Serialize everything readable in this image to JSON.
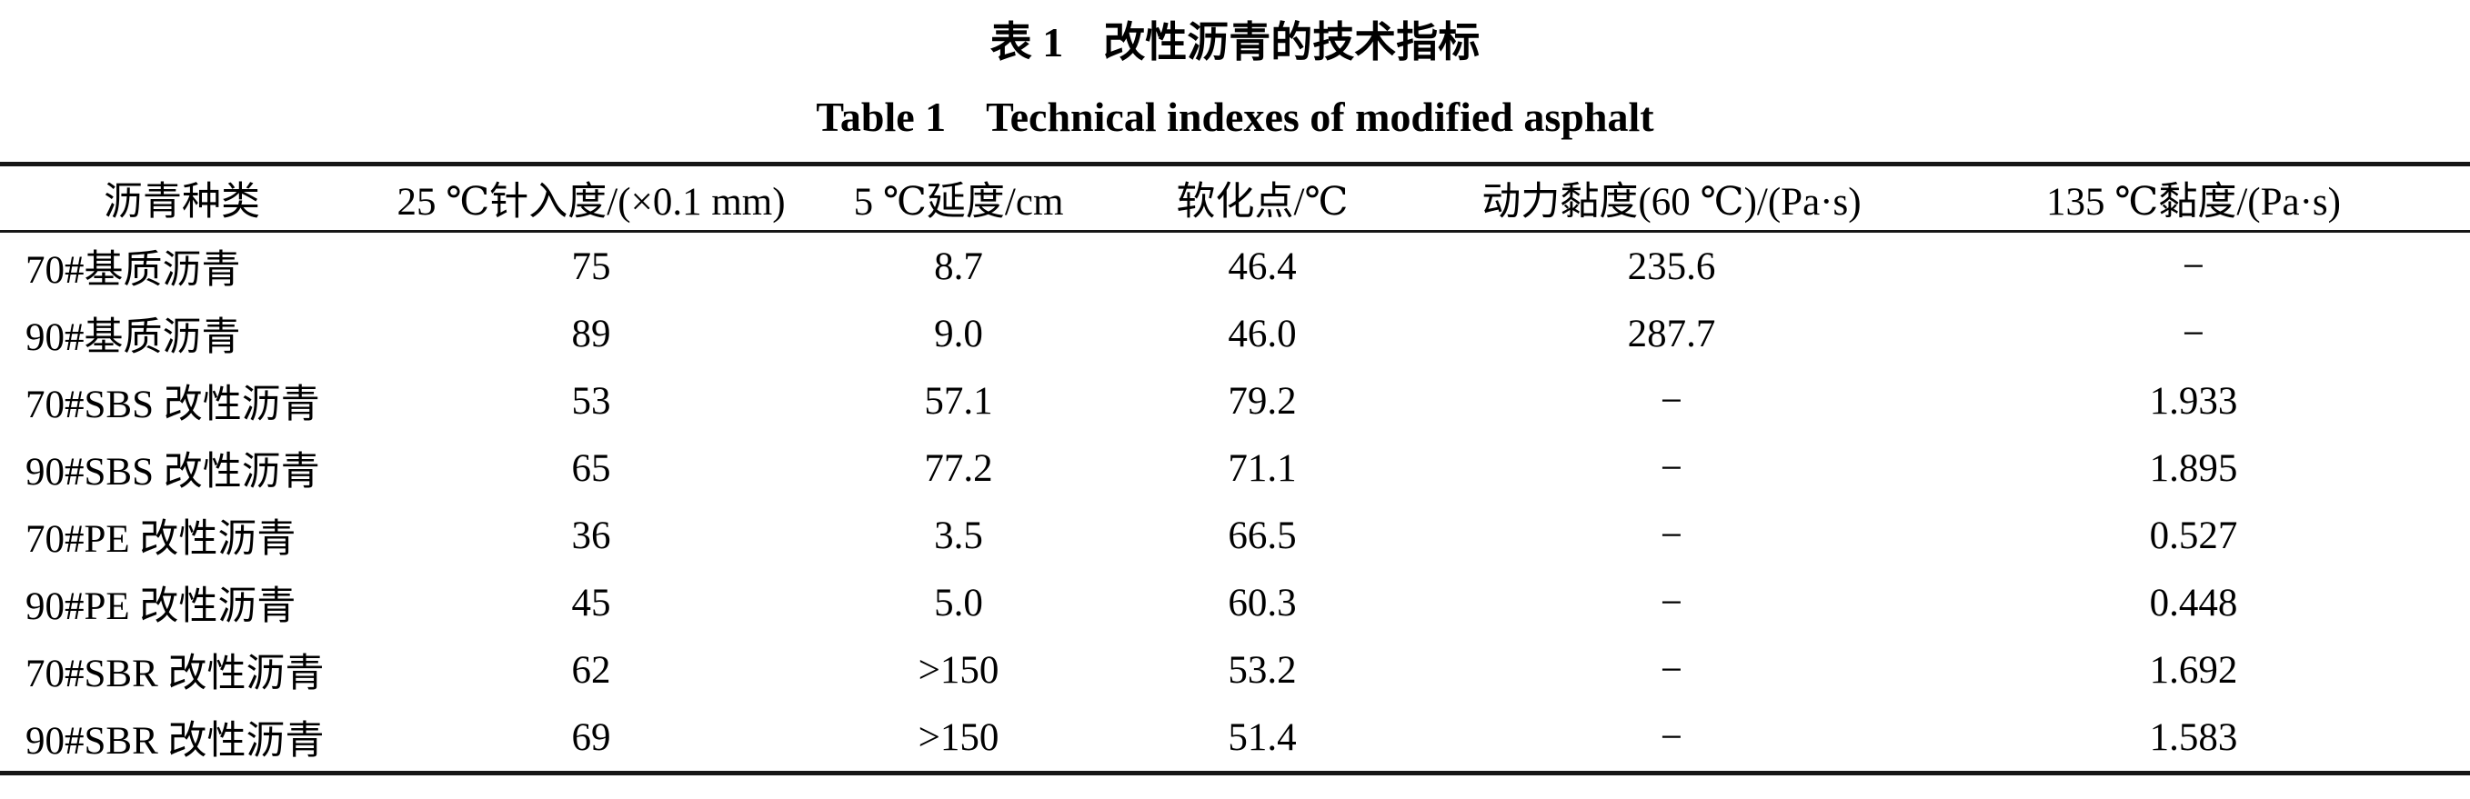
{
  "page": {
    "background_color": "#ffffff",
    "text_color": "#000000",
    "rule_color": "#161616"
  },
  "caption": {
    "cn_label": "表 1",
    "cn_text": "改性沥青的技术指标",
    "en_label": "Table 1",
    "en_text": "Technical indexes of modified asphalt"
  },
  "chart_data": {
    "type": "table",
    "title_cn": "表 1 改性沥青的技术指标",
    "title_en": "Table 1 Technical indexes of modified asphalt",
    "columns": [
      "沥青种类",
      "25 ℃针入度/(×0.1 mm)",
      "5 ℃延度/cm",
      "软化点/℃",
      "动力黏度(60 ℃)/(Pa·s)",
      "135 ℃黏度/(Pa·s)"
    ],
    "rows": [
      [
        "70#基质沥青",
        "75",
        "8.7",
        "46.4",
        "235.6",
        "−"
      ],
      [
        "90#基质沥青",
        "89",
        "9.0",
        "46.0",
        "287.7",
        "−"
      ],
      [
        "70#SBS 改性沥青",
        "53",
        "57.1",
        "79.2",
        "−",
        "1.933"
      ],
      [
        "90#SBS 改性沥青",
        "65",
        "77.2",
        "71.1",
        "−",
        "1.895"
      ],
      [
        "70#PE 改性沥青",
        "36",
        "3.5",
        "66.5",
        "−",
        "0.527"
      ],
      [
        "90#PE 改性沥青",
        "45",
        "5.0",
        "60.3",
        "−",
        "0.448"
      ],
      [
        "70#SBR 改性沥青",
        "62",
        ">150",
        "53.2",
        "−",
        "1.692"
      ],
      [
        "90#SBR 改性沥青",
        "69",
        ">150",
        "51.4",
        "−",
        "1.583"
      ]
    ],
    "layout": {
      "grid": "three-rule booktabs style: thick top rule, thin header rule, thick bottom rule; no vertical rules",
      "first_column_alignment": "left",
      "value_alignment": "center"
    }
  }
}
